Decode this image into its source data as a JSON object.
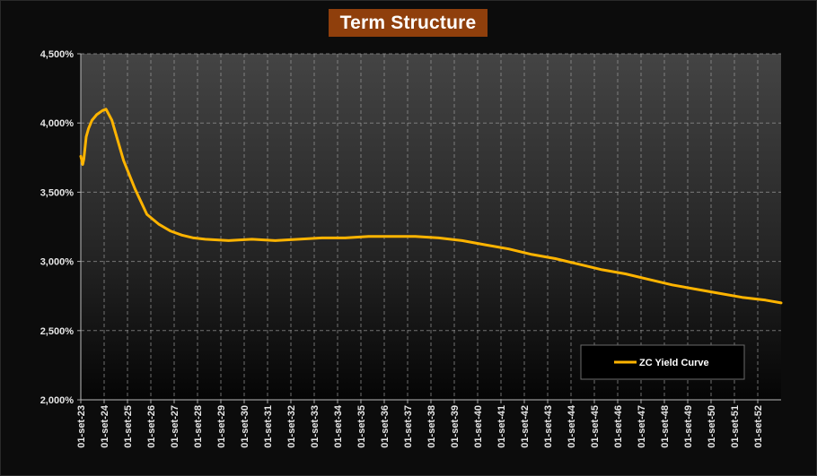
{
  "chart_data": {
    "type": "line",
    "title": "Term Structure",
    "xlabel": "",
    "ylabel": "",
    "ylim": [
      2.0,
      4.5
    ],
    "y_ticks": [
      "2,000%",
      "2,500%",
      "3,000%",
      "3,500%",
      "4,000%",
      "4,500%"
    ],
    "x_ticks": [
      "01-set-23",
      "01-set-24",
      "01-set-25",
      "01-set-26",
      "01-set-27",
      "01-set-28",
      "01-set-29",
      "01-set-30",
      "01-set-31",
      "01-set-32",
      "01-set-33",
      "01-set-34",
      "01-set-35",
      "01-set-36",
      "01-set-37",
      "01-set-38",
      "01-set-39",
      "01-set-40",
      "01-set-41",
      "01-set-42",
      "01-set-43",
      "01-set-44",
      "01-set-45",
      "01-set-46",
      "01-set-47",
      "01-set-48",
      "01-set-49",
      "01-set-50",
      "01-set-51",
      "01-set-52"
    ],
    "grid": true,
    "legend_position": "bottom-right",
    "series": [
      {
        "name": "ZC Yield Curve",
        "color": "#ffb400",
        "x": [
          2023.67,
          2023.75,
          2023.8,
          2023.9,
          2024.0,
          2024.15,
          2024.35,
          2024.6,
          2024.75,
          2025.0,
          2025.5,
          2026.0,
          2026.5,
          2027.0,
          2027.5,
          2028.0,
          2028.5,
          2029.0,
          2030.0,
          2031.0,
          2032.0,
          2033.0,
          2034.0,
          2035.0,
          2036.0,
          2037.0,
          2038.0,
          2039.0,
          2040.0,
          2041.0,
          2042.0,
          2043.0,
          2044.0,
          2045.0,
          2046.0,
          2047.0,
          2048.0,
          2049.0,
          2050.0,
          2051.0,
          2052.0,
          2053.0,
          2053.67
        ],
        "y": [
          3.76,
          3.7,
          3.74,
          3.9,
          3.96,
          4.02,
          4.06,
          4.09,
          4.1,
          4.02,
          3.73,
          3.52,
          3.34,
          3.27,
          3.22,
          3.19,
          3.17,
          3.16,
          3.15,
          3.16,
          3.15,
          3.16,
          3.17,
          3.17,
          3.18,
          3.18,
          3.18,
          3.17,
          3.15,
          3.12,
          3.09,
          3.05,
          3.02,
          2.98,
          2.94,
          2.91,
          2.87,
          2.83,
          2.8,
          2.77,
          2.74,
          2.72,
          2.7
        ]
      }
    ]
  }
}
